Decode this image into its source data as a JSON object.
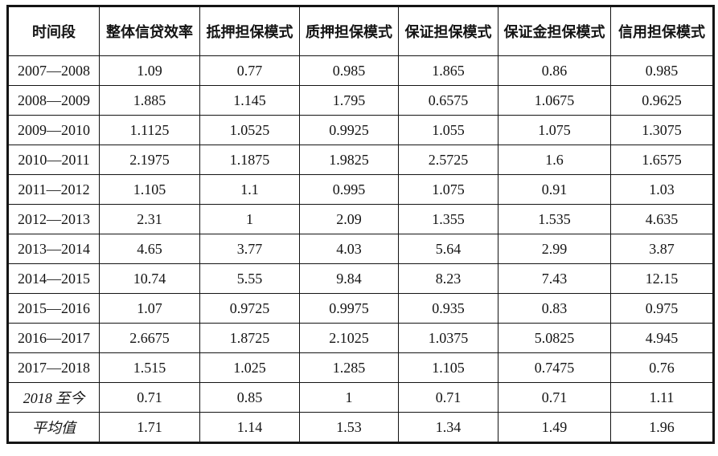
{
  "table": {
    "columns": [
      "时间段",
      "整体信贷效率",
      "抵押担保模式",
      "质押担保模式",
      "保证担保模式",
      "保证金担保模式",
      "信用担保模式"
    ],
    "rows": [
      {
        "label": "2007—2008",
        "values": [
          "1.09",
          "0.77",
          "0.985",
          "1.865",
          "0.86",
          "0.985"
        ],
        "italic": false
      },
      {
        "label": "2008—2009",
        "values": [
          "1.885",
          "1.145",
          "1.795",
          "0.6575",
          "1.0675",
          "0.9625"
        ],
        "italic": false
      },
      {
        "label": "2009—2010",
        "values": [
          "1.1125",
          "1.0525",
          "0.9925",
          "1.055",
          "1.075",
          "1.3075"
        ],
        "italic": false
      },
      {
        "label": "2010—2011",
        "values": [
          "2.1975",
          "1.1875",
          "1.9825",
          "2.5725",
          "1.6",
          "1.6575"
        ],
        "italic": false
      },
      {
        "label": "2011—2012",
        "values": [
          "1.105",
          "1.1",
          "0.995",
          "1.075",
          "0.91",
          "1.03"
        ],
        "italic": false
      },
      {
        "label": "2012—2013",
        "values": [
          "2.31",
          "1",
          "2.09",
          "1.355",
          "1.535",
          "4.635"
        ],
        "italic": false
      },
      {
        "label": "2013—2014",
        "values": [
          "4.65",
          "3.77",
          "4.03",
          "5.64",
          "2.99",
          "3.87"
        ],
        "italic": false
      },
      {
        "label": "2014—2015",
        "values": [
          "10.74",
          "5.55",
          "9.84",
          "8.23",
          "7.43",
          "12.15"
        ],
        "italic": false
      },
      {
        "label": "2015—2016",
        "values": [
          "1.07",
          "0.9725",
          "0.9975",
          "0.935",
          "0.83",
          "0.975"
        ],
        "italic": false
      },
      {
        "label": "2016—2017",
        "values": [
          "2.6675",
          "1.8725",
          "2.1025",
          "1.0375",
          "5.0825",
          "4.945"
        ],
        "italic": false
      },
      {
        "label": "2017—2018",
        "values": [
          "1.515",
          "1.025",
          "1.285",
          "1.105",
          "0.7475",
          "0.76"
        ],
        "italic": false
      },
      {
        "label": "2018 至今",
        "values": [
          "0.71",
          "0.85",
          "1",
          "0.71",
          "0.71",
          "1.11"
        ],
        "italic": true
      },
      {
        "label": "平均值",
        "values": [
          "1.71",
          "1.14",
          "1.53",
          "1.34",
          "1.49",
          "1.96"
        ],
        "italic": true
      }
    ]
  },
  "chart_data": {
    "type": "table",
    "title": "",
    "categories": [
      "2007—2008",
      "2008—2009",
      "2009—2010",
      "2010—2011",
      "2011—2012",
      "2012—2013",
      "2013—2014",
      "2014—2015",
      "2015—2016",
      "2016—2017",
      "2017—2018",
      "2018 至今",
      "平均值"
    ],
    "category_label": "时间段",
    "series": [
      {
        "name": "整体信贷效率",
        "values": [
          1.09,
          1.885,
          1.1125,
          2.1975,
          1.105,
          2.31,
          4.65,
          10.74,
          1.07,
          2.6675,
          1.515,
          0.71,
          1.71
        ]
      },
      {
        "name": "抵押担保模式",
        "values": [
          0.77,
          1.145,
          1.0525,
          1.1875,
          1.1,
          1,
          3.77,
          5.55,
          0.9725,
          1.8725,
          1.025,
          0.85,
          1.14
        ]
      },
      {
        "name": "质押担保模式",
        "values": [
          0.985,
          1.795,
          0.9925,
          1.9825,
          0.995,
          2.09,
          4.03,
          9.84,
          0.9975,
          2.1025,
          1.285,
          1,
          1.53
        ]
      },
      {
        "name": "保证担保模式",
        "values": [
          1.865,
          0.6575,
          1.055,
          2.5725,
          1.075,
          1.355,
          5.64,
          8.23,
          0.935,
          1.0375,
          1.105,
          0.71,
          1.34
        ]
      },
      {
        "name": "保证金担保模式",
        "values": [
          0.86,
          1.0675,
          1.075,
          1.6,
          0.91,
          1.535,
          2.99,
          7.43,
          0.83,
          5.0825,
          0.7475,
          0.71,
          1.49
        ]
      },
      {
        "name": "信用担保模式",
        "values": [
          0.985,
          0.9625,
          1.3075,
          1.6575,
          1.03,
          4.635,
          3.87,
          12.15,
          0.975,
          4.945,
          0.76,
          1.11,
          1.96
        ]
      }
    ],
    "colors": {
      "border": "#141414",
      "text": "#141414",
      "background": "#ffffff"
    }
  }
}
